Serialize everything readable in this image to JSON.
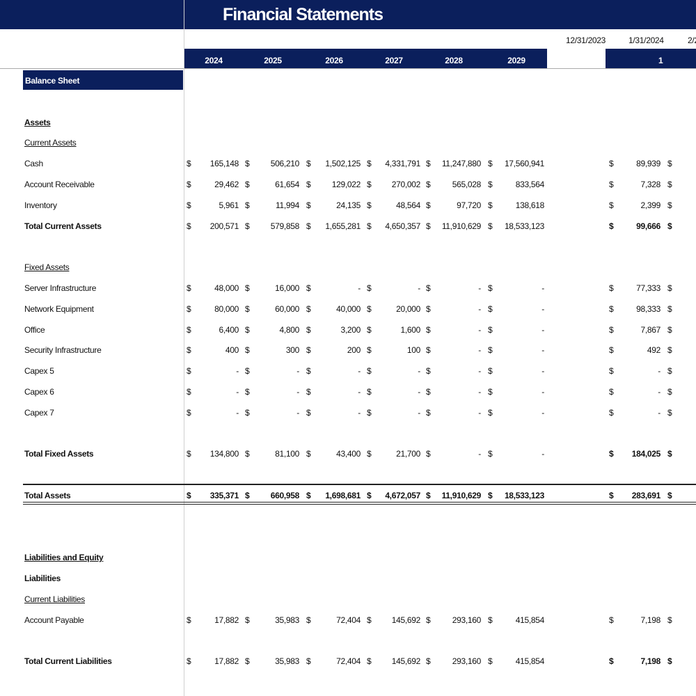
{
  "header": {
    "title": "Financial Statements",
    "dates": [
      "12/31/2023",
      "1/31/2024",
      "2/2"
    ],
    "years": [
      "2024",
      "2025",
      "2026",
      "2027",
      "2028",
      "2029"
    ],
    "period": "1"
  },
  "currency": "$",
  "section": "Balance Sheet",
  "rows": [
    {
      "label": "Assets",
      "style": "bold-underline"
    },
    {
      "label": "Current Assets",
      "style": "underline"
    },
    {
      "label": "Cash",
      "values": [
        "165,148",
        "506,210",
        "1,502,125",
        "4,331,791",
        "11,247,880",
        "17,560,941"
      ],
      "monthly": "89,939"
    },
    {
      "label": "Account Receivable",
      "values": [
        "29,462",
        "61,654",
        "129,022",
        "270,002",
        "565,028",
        "833,564"
      ],
      "monthly": "7,328"
    },
    {
      "label": "Inventory",
      "values": [
        "5,961",
        "11,994",
        "24,135",
        "48,564",
        "97,720",
        "138,618"
      ],
      "monthly": "2,399"
    },
    {
      "label": "Total Current Assets",
      "style": "total",
      "values": [
        "200,571",
        "579,858",
        "1,655,281",
        "4,650,357",
        "11,910,629",
        "18,533,123"
      ],
      "monthly": "99,666"
    },
    {
      "label": "Fixed Assets",
      "style": "underline"
    },
    {
      "label": "Server Infrastructure",
      "values": [
        "48,000",
        "16,000",
        "-",
        "-",
        "-",
        "-"
      ],
      "monthly": "77,333"
    },
    {
      "label": "Network Equipment",
      "values": [
        "80,000",
        "60,000",
        "40,000",
        "20,000",
        "-",
        "-"
      ],
      "monthly": "98,333"
    },
    {
      "label": "Office",
      "values": [
        "6,400",
        "4,800",
        "3,200",
        "1,600",
        "-",
        "-"
      ],
      "monthly": "7,867"
    },
    {
      "label": "Security Infrastructure",
      "values": [
        "400",
        "300",
        "200",
        "100",
        "-",
        "-"
      ],
      "monthly": "492"
    },
    {
      "label": "Capex 5",
      "values": [
        "-",
        "-",
        "-",
        "-",
        "-",
        "-"
      ],
      "monthly": "-"
    },
    {
      "label": "Capex 6",
      "values": [
        "-",
        "-",
        "-",
        "-",
        "-",
        "-"
      ],
      "monthly": "-"
    },
    {
      "label": "Capex 7",
      "values": [
        "-",
        "-",
        "-",
        "-",
        "-",
        "-"
      ],
      "monthly": "-"
    },
    {
      "label": "Total Fixed Assets",
      "style": "total",
      "values": [
        "134,800",
        "81,100",
        "43,400",
        "21,700",
        "-",
        "-"
      ],
      "monthly": "184,025"
    },
    {
      "label": "Total Assets",
      "style": "grand-total",
      "values": [
        "335,371",
        "660,958",
        "1,698,681",
        "4,672,057",
        "11,910,629",
        "18,533,123"
      ],
      "monthly": "283,691"
    },
    {
      "label": "Liabilities and Equity",
      "style": "bold-underline"
    },
    {
      "label": "Liabilities",
      "style": "bold"
    },
    {
      "label": "Current Liabilities",
      "style": "underline"
    },
    {
      "label": "Account Payable",
      "values": [
        "17,882",
        "35,983",
        "72,404",
        "145,692",
        "293,160",
        "415,854"
      ],
      "monthly": "7,198"
    },
    {
      "label": "Total Current Liabilities",
      "style": "total",
      "values": [
        "17,882",
        "35,983",
        "72,404",
        "145,692",
        "293,160",
        "415,854"
      ],
      "monthly": "7,198"
    }
  ]
}
